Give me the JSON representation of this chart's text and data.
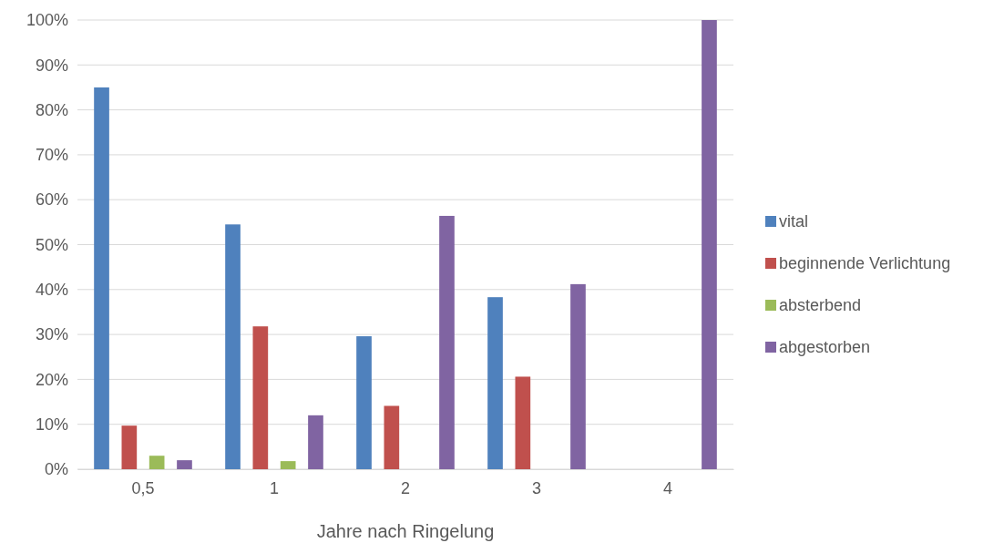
{
  "chart_data": {
    "type": "bar",
    "xlabel": "Jahre nach Ringelung",
    "categories": [
      "0,5",
      "1",
      "2",
      "3",
      "4"
    ],
    "series": [
      {
        "name": "vital",
        "color": "#4f81bd",
        "values": [
          85,
          54.5,
          29.6,
          38.3,
          0
        ]
      },
      {
        "name": "beginnende Verlichtung",
        "color": "#c0504d",
        "values": [
          9.7,
          31.8,
          14.1,
          20.6,
          0
        ]
      },
      {
        "name": "absterbend",
        "color": "#9bbb59",
        "values": [
          3,
          1.8,
          0,
          0,
          0
        ]
      },
      {
        "name": "abgestorben",
        "color": "#8064a2",
        "values": [
          2,
          12,
          56.4,
          41.2,
          100
        ]
      }
    ],
    "ylim": [
      0,
      100
    ],
    "yticks": [
      {
        "value": 0,
        "label": "0%"
      },
      {
        "value": 10,
        "label": "10%"
      },
      {
        "value": 20,
        "label": "20%"
      },
      {
        "value": 30,
        "label": "30%"
      },
      {
        "value": 40,
        "label": "40%"
      },
      {
        "value": 50,
        "label": "50%"
      },
      {
        "value": 60,
        "label": "60%"
      },
      {
        "value": 70,
        "label": "70%"
      },
      {
        "value": 80,
        "label": "80%"
      },
      {
        "value": 90,
        "label": "90%"
      },
      {
        "value": 100,
        "label": "100%"
      }
    ],
    "grid": "y",
    "legend": "right"
  }
}
